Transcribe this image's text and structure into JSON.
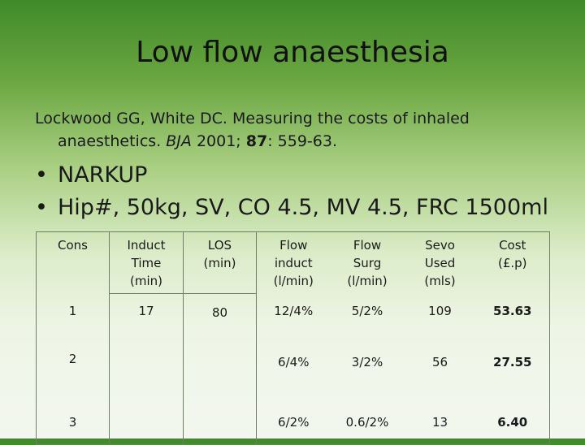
{
  "slide": {
    "title": "Low flow anaesthesia",
    "reference": {
      "line1": "Lockwood GG, White DC. Measuring the costs of inhaled",
      "line2_a": "anaesthetics. ",
      "line2_journal": "BJA",
      "line2_b": " 2001; ",
      "line2_volume": "87",
      "line2_c": ": 559-63."
    },
    "bullets": [
      "NARKUP",
      "Hip#, 50kg, SV, CO 4.5, MV 4.5, FRC 1500ml"
    ],
    "bullet_glyph": "•"
  },
  "table": {
    "headers": {
      "cons": "Cons",
      "induct_time": [
        "Induct",
        "Time",
        "(min)"
      ],
      "los": [
        "LOS",
        "(min)"
      ],
      "flow_induct": [
        "Flow",
        "induct",
        "(l/min)"
      ],
      "flow_surg": [
        "Flow",
        "Surg",
        "(l/min)"
      ],
      "sevo_used": [
        "Sevo",
        "Used",
        "(mls)"
      ],
      "cost": [
        "Cost",
        "(£.p)"
      ]
    },
    "shared": {
      "induct_time": "17",
      "los": "80"
    },
    "rows": [
      {
        "cons": "1",
        "flow_induct": "12/4%",
        "flow_surg": "5/2%",
        "sevo_used": "109",
        "cost": "53.63"
      },
      {
        "cons": "2",
        "flow_induct": "6/4%",
        "flow_surg": "3/2%",
        "sevo_used": "56",
        "cost": "27.55"
      },
      {
        "cons": "3",
        "flow_induct": "6/2%",
        "flow_surg": "0.6/2%",
        "sevo_used": "13",
        "cost": "6.40"
      }
    ]
  }
}
